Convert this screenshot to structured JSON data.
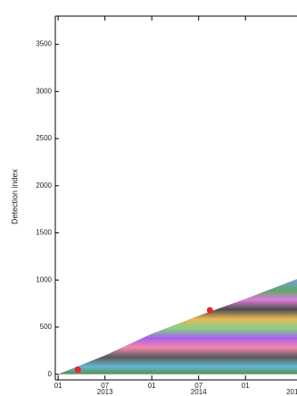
{
  "chart_data": {
    "type": "scatter",
    "y_label": "Detection index",
    "xlim": [
      2012.97,
      2015.55
    ],
    "ylim": [
      -60,
      3800
    ],
    "yticks": [
      0,
      500,
      1000,
      1500,
      2000,
      2500,
      3000,
      3500
    ],
    "xticks": [
      {
        "value": 2013.0,
        "label": "01"
      },
      {
        "value": 2013.5,
        "label": "07"
      },
      {
        "value": 2014.0,
        "label": "01"
      },
      {
        "value": 2014.5,
        "label": "07"
      },
      {
        "value": 2015.0,
        "label": "01"
      }
    ],
    "x_group_labels": [
      {
        "value": 2013.5,
        "label": "2013"
      },
      {
        "value": 2014.5,
        "label": "2014"
      },
      {
        "value": 2015.5,
        "label": "201"
      }
    ],
    "envelope": {
      "x": [
        2013.0,
        2013.5,
        2014.0,
        2014.5,
        2015.0,
        2015.55
      ],
      "values": [
        0,
        200,
        430,
        620,
        800,
        1010
      ]
    },
    "series": [
      {
        "name": "highlight",
        "color": "#e8262a",
        "x": [
          2013.21,
          2014.62
        ],
        "values": [
          50,
          680
        ]
      }
    ]
  }
}
